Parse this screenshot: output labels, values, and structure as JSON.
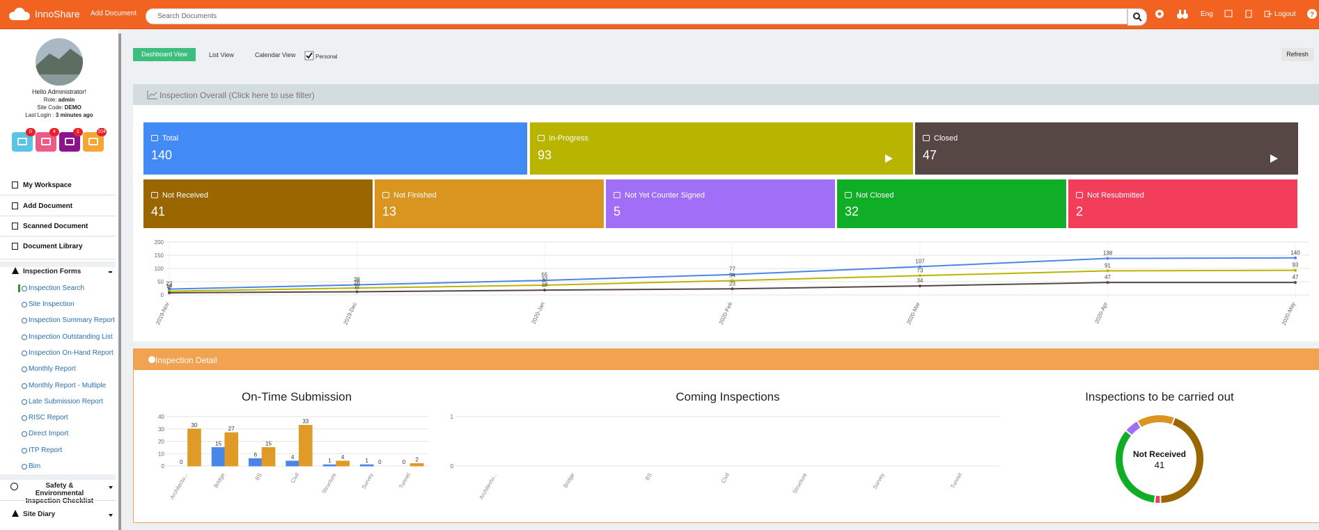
{
  "header": {
    "brand": "InnoShare",
    "add_document": "Add Document",
    "search_placeholder": "Search Documents",
    "lang": "Eng",
    "logout": "Logout"
  },
  "profile": {
    "greeting": "Hello Administrator!",
    "role_label": "Role:",
    "role": "admin",
    "site_code_label": "Site Code:",
    "site_code": "DEMO",
    "last_login_label": "Last Login :",
    "last_login": "3 minutes ago",
    "badges": [
      0,
      4,
      1,
      104
    ],
    "badge_colors": [
      "#5bc4e6",
      "#ee5a86",
      "#8e118e",
      "#f5a733"
    ]
  },
  "nav": [
    "My Workspace",
    "Add Document",
    "Scanned Document",
    "Document Library"
  ],
  "inspection_forms": {
    "title": "Inspection Forms",
    "items": [
      "Inspection Search",
      "Site Inspection",
      "Inspection Summary Report",
      "Inspection Outstanding List",
      "Inspection On-Hand Report",
      "Monthly Report",
      "Monthly Report - Multiple",
      "Late Submission Report",
      "RISC Report",
      "Direct Import",
      "ITP Report",
      "Bim"
    ]
  },
  "nav_bottom": [
    "Safety & Environmental Inspection Checklist",
    "Site Diary"
  ],
  "toolbar": {
    "tabs": [
      "Dashboard View",
      "List View",
      "Calendar View"
    ],
    "personal": "Personal",
    "refresh": "Refresh"
  },
  "overall": {
    "title": "Inspection Overall (Click here to use filter)",
    "cards": [
      {
        "label": "Total",
        "value": 140,
        "color": "#428bf6"
      },
      {
        "label": "In-Progress",
        "value": 93,
        "color": "#b8b400"
      },
      {
        "label": "Closed",
        "value": 47,
        "color": "#574744"
      },
      {
        "label": "Not Received",
        "value": 41,
        "color": "#9a6600"
      },
      {
        "label": "Not Finished",
        "value": 13,
        "color": "#d99520"
      },
      {
        "label": "Not Yet Counter Signed",
        "value": 5,
        "color": "#a16ef7"
      },
      {
        "label": "Not Closed",
        "value": 32,
        "color": "#10ad27"
      },
      {
        "label": "Not Resubmitted",
        "value": 2,
        "color": "#f23d5b"
      }
    ]
  },
  "trend_chart": {
    "type": "line",
    "categories": [
      "2019-Nov",
      "2019-Dec",
      "2020-Jan",
      "2020-Feb",
      "2020-Mar",
      "2020-Apr",
      "2020-May"
    ],
    "ylim": [
      0,
      200
    ],
    "yticks": [
      0,
      50,
      100,
      150,
      200
    ],
    "grid": true,
    "series": [
      {
        "color": "#4a86e8",
        "values": [
          22,
          38,
          55,
          77,
          107,
          138,
          140
        ]
      },
      {
        "color": "#b8b400",
        "values": [
          14,
          26,
          37,
          54,
          73,
          91,
          93
        ]
      },
      {
        "color": "#574744",
        "values": [
          8,
          12,
          18,
          23,
          34,
          47,
          47
        ]
      }
    ]
  },
  "detail": {
    "title": "Inspection Detail",
    "ontime_chart": {
      "type": "bar",
      "title": "On-Time Submission",
      "categories": [
        "Architectu...",
        "Bridge",
        "BS",
        "Civil",
        "Structure",
        "Survey",
        "Tunnel"
      ],
      "ylim": [
        0,
        40
      ],
      "yticks": [
        0,
        10,
        20,
        30,
        40
      ],
      "grid": true,
      "series": [
        {
          "color": "#4a86e8",
          "values": [
            0,
            15,
            6,
            4,
            1,
            1,
            0
          ]
        },
        {
          "color": "#e09a28",
          "values": [
            30,
            27,
            15,
            33,
            4,
            0,
            2
          ]
        }
      ]
    },
    "coming_chart": {
      "type": "bar",
      "title": "Coming Inspections",
      "categories": [
        "Architectu...",
        "Bridge",
        "BS",
        "Civil",
        "Structure",
        "Survey",
        "Tunnel"
      ],
      "ylim": [
        0,
        1
      ],
      "yticks": [
        0,
        1
      ],
      "grid": true,
      "series": [
        {
          "color": "#e0603a",
          "values": [
            0,
            0,
            0,
            0,
            0,
            0,
            0
          ]
        }
      ]
    },
    "donut_chart": {
      "type": "donut",
      "title": "Inspections to be carried out",
      "center_label": "Not Received",
      "values": [
        41,
        2,
        32,
        5,
        13
      ],
      "colors": [
        "#9a6600",
        "#f23d5b",
        "#10ad27",
        "#a16ef7",
        "#d99520"
      ]
    }
  }
}
